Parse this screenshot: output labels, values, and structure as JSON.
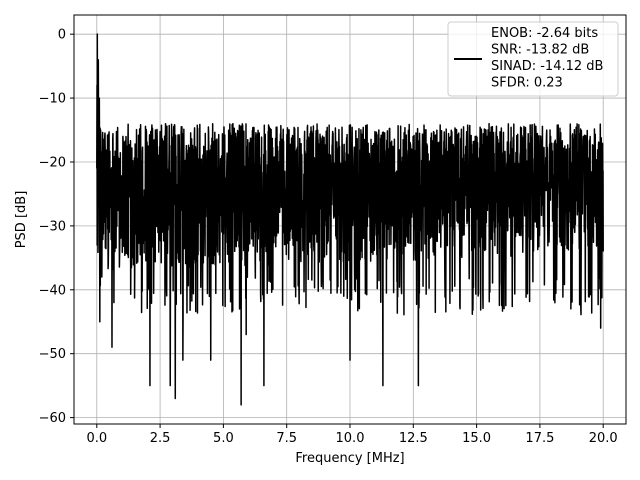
{
  "chart_data": {
    "type": "line",
    "title": "",
    "xlabel": "Frequency [MHz]",
    "ylabel": "PSD [dB]",
    "xlim": [
      -0.9,
      20.9
    ],
    "ylim": [
      -61,
      3
    ],
    "xticks": [
      0.0,
      2.5,
      5.0,
      7.5,
      10.0,
      12.5,
      15.0,
      17.5,
      20.0
    ],
    "xtick_labels": [
      "0.0",
      "2.5",
      "5.0",
      "7.5",
      "10.0",
      "12.5",
      "15.0",
      "17.5",
      "20.0"
    ],
    "yticks": [
      0,
      -10,
      -20,
      -30,
      -40,
      -50,
      -60
    ],
    "ytick_labels": [
      "0",
      "−10",
      "−20",
      "−30",
      "−40",
      "−50",
      "−60"
    ],
    "grid": true,
    "legend_position": "top-right",
    "legend_lines": [
      "ENOB: -2.64 bits",
      "SNR: -13.82 dB",
      "SINAD: -14.12 dB",
      "SFDR: 0.23"
    ],
    "series": [
      {
        "color": "#000000",
        "x_range": [
          0,
          20
        ],
        "noise_floor_range": [
          -40,
          -14
        ],
        "points": [
          [
            0.0,
            -21
          ],
          [
            0.01,
            -8
          ],
          [
            0.02,
            0
          ],
          [
            0.04,
            -12
          ],
          [
            0.06,
            -4
          ],
          [
            0.08,
            -20
          ],
          [
            0.1,
            -10
          ],
          [
            0.12,
            -45
          ],
          [
            0.15,
            -15
          ],
          [
            0.2,
            -38
          ],
          [
            0.3,
            -20
          ],
          [
            0.6,
            -49
          ],
          [
            2.1,
            -55
          ],
          [
            2.9,
            -55
          ],
          [
            3.1,
            -57
          ],
          [
            3.4,
            -51
          ],
          [
            4.5,
            -51
          ],
          [
            5.7,
            -58
          ],
          [
            5.9,
            -47
          ],
          [
            6.6,
            -55
          ],
          [
            10.0,
            -51
          ],
          [
            11.3,
            -55
          ],
          [
            12.7,
            -55
          ],
          [
            19.9,
            -46
          ],
          [
            20.0,
            -34
          ]
        ]
      }
    ]
  }
}
